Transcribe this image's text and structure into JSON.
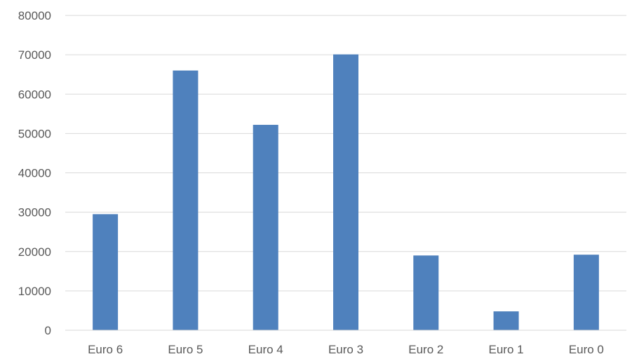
{
  "chart_data": {
    "type": "bar",
    "title": "",
    "xlabel": "",
    "ylabel": "",
    "categories": [
      "Euro 6",
      "Euro 5",
      "Euro 4",
      "Euro 3",
      "Euro 2",
      "Euro 1",
      "Euro 0"
    ],
    "values": [
      29500,
      66000,
      52200,
      70100,
      19000,
      4800,
      19200
    ],
    "ylim": [
      0,
      80000
    ],
    "yticks": [
      "0",
      "10000",
      "20000",
      "30000",
      "40000",
      "50000",
      "60000",
      "70000",
      "80000"
    ],
    "grid": true,
    "legend": "none",
    "colors": {
      "bar": "#4f81bd",
      "grid": "#d9d9d9",
      "text": "#595959"
    }
  }
}
